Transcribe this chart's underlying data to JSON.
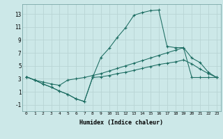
{
  "xlabel": "Humidex (Indice chaleur)",
  "bg_color": "#cce8e8",
  "grid_color": "#b8d4d4",
  "line_color": "#1a6b60",
  "xlim": [
    -0.5,
    23.5
  ],
  "ylim": [
    -2,
    14.5
  ],
  "xticks": [
    0,
    1,
    2,
    3,
    4,
    5,
    6,
    7,
    8,
    9,
    10,
    11,
    12,
    13,
    14,
    15,
    16,
    17,
    18,
    19,
    20,
    21,
    22,
    23
  ],
  "yticks": [
    -1,
    1,
    3,
    5,
    7,
    9,
    11,
    13
  ],
  "series1_x": [
    0,
    1,
    2,
    3,
    4,
    5,
    6,
    7,
    8,
    9,
    10,
    11,
    12,
    13,
    14,
    15,
    16,
    17,
    18,
    19,
    20,
    21,
    22,
    23
  ],
  "series1_y": [
    3.3,
    2.8,
    2.2,
    1.7,
    1.1,
    0.6,
    -0.1,
    -0.5,
    3.2,
    6.3,
    7.7,
    9.4,
    10.9,
    12.8,
    13.2,
    13.5,
    13.6,
    8.0,
    7.8,
    7.8,
    3.2,
    3.2,
    3.2,
    3.2
  ],
  "series2_x": [
    0,
    1,
    2,
    3,
    4,
    5,
    6,
    7,
    8,
    9,
    10,
    11,
    12,
    13,
    14,
    15,
    16,
    17,
    18,
    19,
    20,
    21,
    22,
    23
  ],
  "series2_y": [
    3.3,
    2.8,
    2.5,
    2.2,
    2.0,
    2.8,
    3.0,
    3.2,
    3.5,
    3.8,
    4.2,
    4.6,
    5.0,
    5.4,
    5.8,
    6.2,
    6.6,
    7.0,
    7.4,
    7.8,
    6.2,
    5.5,
    4.0,
    3.2
  ],
  "series3_x": [
    0,
    1,
    2,
    3,
    4,
    5,
    6,
    7,
    8,
    9,
    10,
    11,
    12,
    13,
    14,
    15,
    16,
    17,
    18,
    19,
    20,
    21,
    22,
    23
  ],
  "series3_y": [
    3.3,
    2.8,
    2.2,
    1.7,
    1.1,
    0.6,
    -0.1,
    -0.5,
    3.2,
    3.3,
    3.5,
    3.8,
    4.0,
    4.3,
    4.6,
    4.9,
    5.2,
    5.4,
    5.6,
    5.9,
    5.3,
    4.5,
    3.8,
    3.2
  ]
}
